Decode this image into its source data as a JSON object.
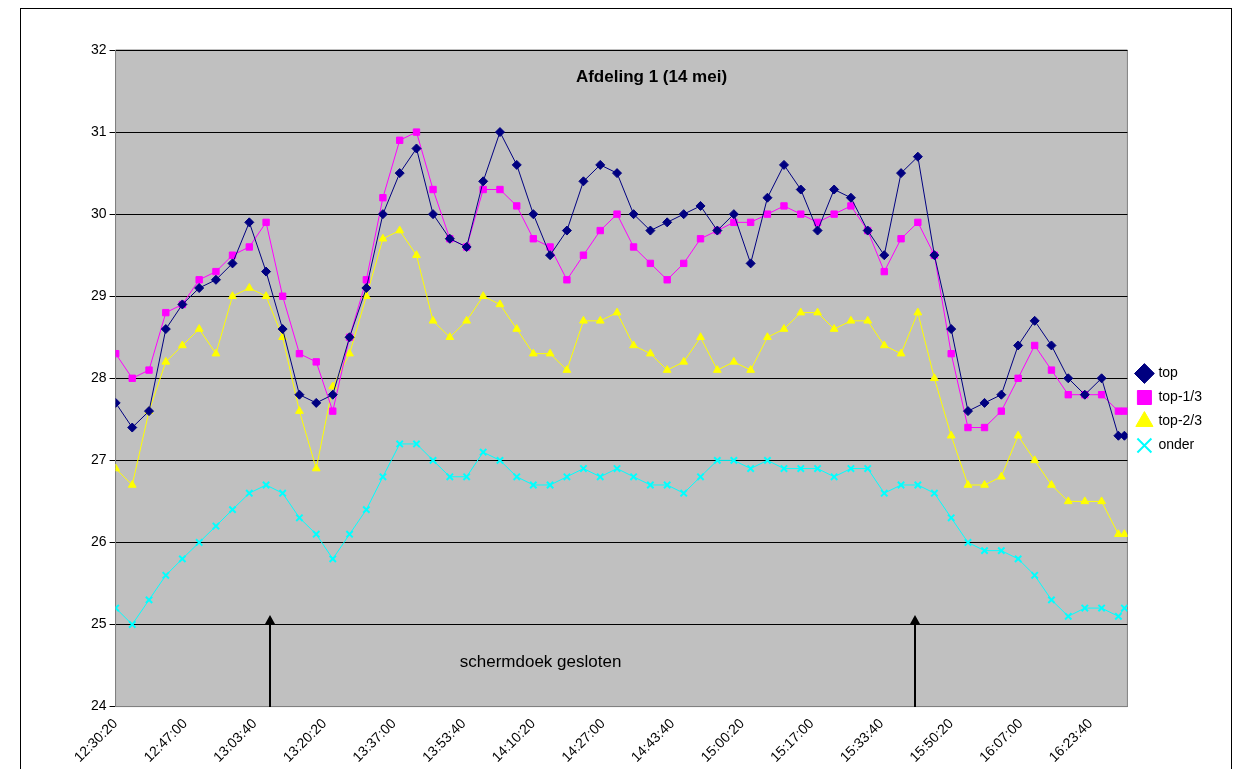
{
  "chart_data": {
    "type": "line",
    "title": "Afdeling 1 (14 mei)",
    "x": [
      12.506,
      12.572,
      12.639,
      12.706,
      12.772,
      12.839,
      12.906,
      12.972,
      13.039,
      13.106,
      13.172,
      13.239,
      13.306,
      13.372,
      13.439,
      13.506,
      13.572,
      13.639,
      13.706,
      13.772,
      13.839,
      13.906,
      13.972,
      14.039,
      14.106,
      14.172,
      14.239,
      14.306,
      14.372,
      14.439,
      14.506,
      14.572,
      14.639,
      14.706,
      14.772,
      14.839,
      14.906,
      14.972,
      15.039,
      15.106,
      15.172,
      15.239,
      15.306,
      15.372,
      15.439,
      15.506,
      15.572,
      15.639,
      15.706,
      15.772,
      15.839,
      15.906,
      15.972,
      16.039,
      16.106,
      16.172,
      16.239,
      16.306,
      16.372,
      16.439,
      16.506,
      16.53
    ],
    "series": [
      {
        "name": "top",
        "color": "#000080",
        "marker": "diamond",
        "values": [
          27.7,
          27.4,
          27.6,
          28.6,
          28.9,
          29.1,
          29.2,
          29.4,
          29.9,
          29.3,
          28.6,
          27.8,
          27.7,
          27.8,
          28.5,
          29.1,
          30.0,
          30.5,
          30.8,
          30.0,
          29.7,
          29.6,
          30.4,
          31.0,
          30.6,
          30.0,
          29.5,
          29.8,
          30.4,
          30.6,
          30.5,
          30.0,
          29.8,
          29.9,
          30.0,
          30.1,
          29.8,
          30.0,
          29.4,
          30.2,
          30.6,
          30.3,
          29.8,
          30.3,
          30.2,
          29.8,
          29.5,
          30.5,
          30.7,
          29.5,
          28.6,
          27.6,
          27.7,
          27.8,
          28.4,
          28.7,
          28.4,
          28.0,
          27.8,
          28.0,
          27.3,
          27.3
        ]
      },
      {
        "name": "top-1/3",
        "color": "#ff00ff",
        "marker": "square",
        "values": [
          28.3,
          28.0,
          28.1,
          28.8,
          28.9,
          29.2,
          29.3,
          29.5,
          29.6,
          29.9,
          29.0,
          28.3,
          28.2,
          27.6,
          28.5,
          29.2,
          30.2,
          30.9,
          31.0,
          30.3,
          29.7,
          29.6,
          30.3,
          30.3,
          30.1,
          29.7,
          29.6,
          29.2,
          29.5,
          29.8,
          30.0,
          29.6,
          29.4,
          29.2,
          29.4,
          29.7,
          29.8,
          29.9,
          29.9,
          30.0,
          30.1,
          30.0,
          29.9,
          30.0,
          30.1,
          29.8,
          29.3,
          29.7,
          29.9,
          29.5,
          28.3,
          27.4,
          27.4,
          27.6,
          28.0,
          28.4,
          28.1,
          27.8,
          27.8,
          27.8,
          27.6,
          27.6
        ]
      },
      {
        "name": "top-2/3",
        "color": "#ffff00",
        "marker": "triangle",
        "values": [
          26.9,
          26.7,
          27.6,
          28.2,
          28.4,
          28.6,
          28.3,
          29.0,
          29.1,
          29.0,
          28.5,
          27.6,
          26.9,
          27.9,
          28.3,
          29.0,
          29.7,
          29.8,
          29.5,
          28.7,
          28.5,
          28.7,
          29.0,
          28.9,
          28.6,
          28.3,
          28.3,
          28.1,
          28.7,
          28.7,
          28.8,
          28.4,
          28.3,
          28.1,
          28.2,
          28.5,
          28.1,
          28.2,
          28.1,
          28.5,
          28.6,
          28.8,
          28.8,
          28.6,
          28.7,
          28.7,
          28.4,
          28.3,
          28.8,
          28.0,
          27.3,
          26.7,
          26.7,
          26.8,
          27.3,
          27.0,
          26.7,
          26.5,
          26.5,
          26.5,
          26.1,
          26.1
        ]
      },
      {
        "name": "onder",
        "color": "#00ffff",
        "marker": "cross",
        "values": [
          25.2,
          25.0,
          25.3,
          25.6,
          25.8,
          26.0,
          26.2,
          26.4,
          26.6,
          26.7,
          26.6,
          26.3,
          26.1,
          25.8,
          26.1,
          26.4,
          26.8,
          27.2,
          27.2,
          27.0,
          26.8,
          26.8,
          27.1,
          27.0,
          26.8,
          26.7,
          26.7,
          26.8,
          26.9,
          26.8,
          26.9,
          26.8,
          26.7,
          26.7,
          26.6,
          26.8,
          27.0,
          27.0,
          26.9,
          27.0,
          26.9,
          26.9,
          26.9,
          26.8,
          26.9,
          26.9,
          26.6,
          26.7,
          26.7,
          26.6,
          26.3,
          26.0,
          25.9,
          25.9,
          25.8,
          25.6,
          25.3,
          25.1,
          25.2,
          25.2,
          25.1,
          25.2
        ]
      }
    ],
    "xlim": [
      12.50556,
      16.542
    ],
    "xticks": [
      {
        "value": 12.50556,
        "label": "12:30:20"
      },
      {
        "value": 12.78333,
        "label": "12:47:00"
      },
      {
        "value": 13.06111,
        "label": "13:03:40"
      },
      {
        "value": 13.33889,
        "label": "13:20:20"
      },
      {
        "value": 13.61667,
        "label": "13:37:00"
      },
      {
        "value": 13.89444,
        "label": "13:53:40"
      },
      {
        "value": 14.17222,
        "label": "14:10:20"
      },
      {
        "value": 14.45,
        "label": "14:27:00"
      },
      {
        "value": 14.72778,
        "label": "14:43:40"
      },
      {
        "value": 15.00556,
        "label": "15:00:20"
      },
      {
        "value": 15.28333,
        "label": "15:17:00"
      },
      {
        "value": 15.56111,
        "label": "15:33:40"
      },
      {
        "value": 15.83889,
        "label": "15:50:20"
      },
      {
        "value": 16.11667,
        "label": "16:07:00"
      },
      {
        "value": 16.39444,
        "label": "16:23:40"
      }
    ],
    "ylim": [
      24,
      32
    ],
    "yticks": [
      24,
      25,
      26,
      27,
      28,
      29,
      30,
      31,
      32
    ],
    "grid": "y",
    "legend": "right",
    "annotations": [
      "schermdoek gesloten"
    ]
  }
}
